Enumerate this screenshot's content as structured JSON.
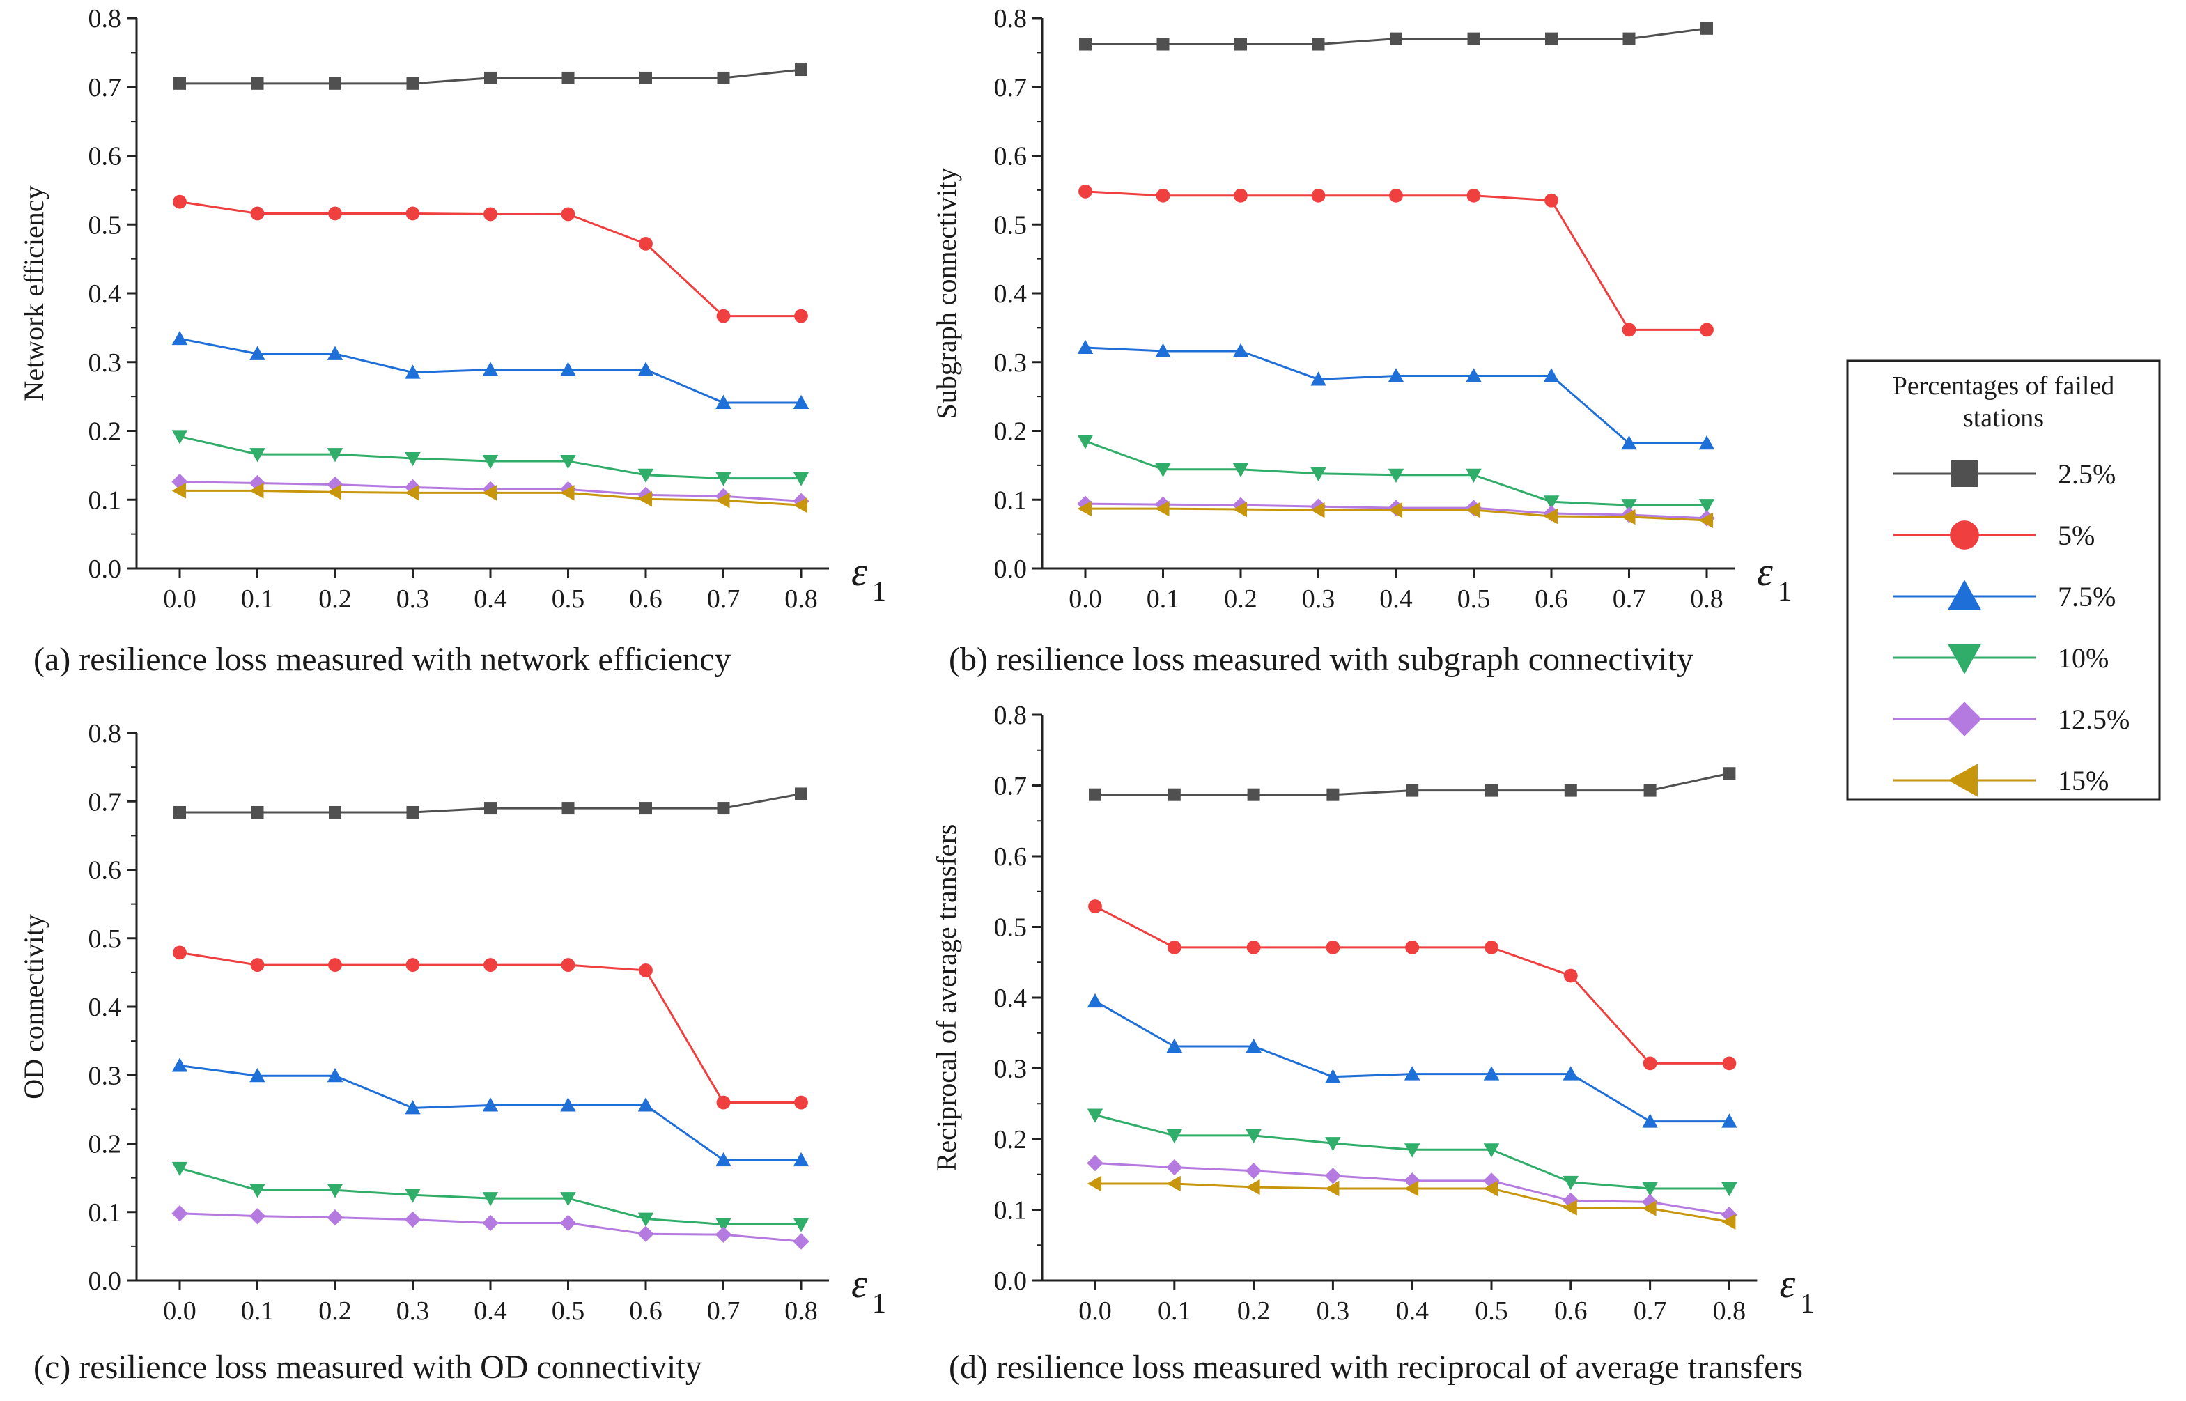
{
  "legend": {
    "title": "Percentages of failed stations",
    "title_lines": [
      "Percentages of failed",
      "stations"
    ],
    "entries": [
      {
        "label": "2.5%",
        "color": "#505050",
        "marker": "square"
      },
      {
        "label": "5%",
        "color": "#ef3f3f",
        "marker": "circle"
      },
      {
        "label": "7.5%",
        "color": "#1f6fd8",
        "marker": "triangle-up"
      },
      {
        "label": "10%",
        "color": "#2fad69",
        "marker": "triangle-down"
      },
      {
        "label": "12.5%",
        "color": "#b57ae0",
        "marker": "diamond"
      },
      {
        "label": "15%",
        "color": "#c8960c",
        "marker": "triangle-left"
      }
    ]
  },
  "chart_data": [
    {
      "type": "line",
      "caption": "(a) resilience loss measured with network efficiency",
      "xlabel": "ε",
      "xlabel_sub": "1",
      "ylabel": "Network efficiency",
      "x": [
        0.0,
        0.1,
        0.2,
        0.3,
        0.4,
        0.5,
        0.6,
        0.7,
        0.8
      ],
      "xticks": [
        "0.0",
        "0.1",
        "0.2",
        "0.3",
        "0.4",
        "0.5",
        "0.6",
        "0.7",
        "0.8"
      ],
      "yticks": [
        "0.0",
        "0.1",
        "0.2",
        "0.3",
        "0.4",
        "0.5",
        "0.6",
        "0.7",
        "0.8"
      ],
      "ylim": [
        0,
        0.8
      ],
      "series": [
        {
          "name": "2.5%",
          "values": [
            0.705,
            0.705,
            0.705,
            0.705,
            0.713,
            0.713,
            0.713,
            0.713,
            0.725
          ]
        },
        {
          "name": "5%",
          "values": [
            0.533,
            0.516,
            0.516,
            0.516,
            0.515,
            0.515,
            0.472,
            0.367,
            0.367
          ]
        },
        {
          "name": "7.5%",
          "values": [
            0.334,
            0.312,
            0.312,
            0.285,
            0.289,
            0.289,
            0.289,
            0.241,
            0.241
          ]
        },
        {
          "name": "10%",
          "values": [
            0.192,
            0.166,
            0.166,
            0.16,
            0.156,
            0.156,
            0.136,
            0.131,
            0.131
          ]
        },
        {
          "name": "12.5%",
          "values": [
            0.126,
            0.124,
            0.122,
            0.118,
            0.115,
            0.115,
            0.107,
            0.105,
            0.098
          ]
        },
        {
          "name": "15%",
          "values": [
            0.113,
            0.113,
            0.111,
            0.11,
            0.11,
            0.11,
            0.101,
            0.099,
            0.092
          ]
        }
      ]
    },
    {
      "type": "line",
      "caption": "(b) resilience loss measured with subgraph connectivity",
      "xlabel": "ε",
      "xlabel_sub": "1",
      "ylabel": "Subgraph connectivity",
      "x": [
        0.0,
        0.1,
        0.2,
        0.3,
        0.4,
        0.5,
        0.6,
        0.7,
        0.8
      ],
      "xticks": [
        "0.0",
        "0.1",
        "0.2",
        "0.3",
        "0.4",
        "0.5",
        "0.6",
        "0.7",
        "0.8"
      ],
      "yticks": [
        "0.0",
        "0.1",
        "0.2",
        "0.3",
        "0.4",
        "0.5",
        "0.6",
        "0.7",
        "0.8"
      ],
      "ylim": [
        0,
        0.8
      ],
      "series": [
        {
          "name": "2.5%",
          "values": [
            0.762,
            0.762,
            0.762,
            0.762,
            0.77,
            0.77,
            0.77,
            0.77,
            0.785
          ]
        },
        {
          "name": "5%",
          "values": [
            0.548,
            0.542,
            0.542,
            0.542,
            0.542,
            0.542,
            0.535,
            0.347,
            0.347
          ]
        },
        {
          "name": "7.5%",
          "values": [
            0.321,
            0.316,
            0.316,
            0.275,
            0.28,
            0.28,
            0.28,
            0.182,
            0.182
          ]
        },
        {
          "name": "10%",
          "values": [
            0.185,
            0.144,
            0.144,
            0.138,
            0.136,
            0.136,
            0.097,
            0.092,
            0.092
          ]
        },
        {
          "name": "12.5%",
          "values": [
            0.094,
            0.093,
            0.092,
            0.09,
            0.088,
            0.088,
            0.08,
            0.078,
            0.073
          ]
        },
        {
          "name": "15%",
          "values": [
            0.087,
            0.087,
            0.086,
            0.085,
            0.085,
            0.085,
            0.076,
            0.075,
            0.07
          ]
        }
      ]
    },
    {
      "type": "line",
      "caption": "(c) resilience loss measured with OD connectivity",
      "xlabel": "ε",
      "xlabel_sub": "1",
      "ylabel": "OD connectivity",
      "x": [
        0.0,
        0.1,
        0.2,
        0.3,
        0.4,
        0.5,
        0.6,
        0.7,
        0.8
      ],
      "xticks": [
        "0.0",
        "0.1",
        "0.2",
        "0.3",
        "0.4",
        "0.5",
        "0.6",
        "0.7",
        "0.8"
      ],
      "yticks": [
        "0.0",
        "0.1",
        "0.2",
        "0.3",
        "0.4",
        "0.5",
        "0.6",
        "0.7",
        "0.8"
      ],
      "ylim": [
        0,
        0.8
      ],
      "series": [
        {
          "name": "2.5%",
          "values": [
            0.684,
            0.684,
            0.684,
            0.684,
            0.69,
            0.69,
            0.69,
            0.69,
            0.711
          ]
        },
        {
          "name": "5%",
          "values": [
            0.479,
            0.461,
            0.461,
            0.461,
            0.461,
            0.461,
            0.453,
            0.26,
            0.26
          ]
        },
        {
          "name": "7.5%",
          "values": [
            0.314,
            0.299,
            0.299,
            0.252,
            0.256,
            0.256,
            0.256,
            0.176,
            0.176
          ]
        },
        {
          "name": "10%",
          "values": [
            0.164,
            0.132,
            0.132,
            0.125,
            0.12,
            0.12,
            0.09,
            0.082,
            0.082
          ]
        },
        {
          "name": "12.5%",
          "values": [
            0.098,
            0.094,
            0.092,
            0.089,
            0.084,
            0.084,
            0.068,
            0.067,
            0.057
          ]
        }
      ]
    },
    {
      "type": "line",
      "caption": "(d) resilience loss measured with reciprocal of average transfers",
      "xlabel": "ε",
      "xlabel_sub": "1",
      "ylabel": "Reciprocal of average transfers",
      "x": [
        0.0,
        0.1,
        0.2,
        0.3,
        0.4,
        0.5,
        0.6,
        0.7,
        0.8
      ],
      "xticks": [
        "0.0",
        "0.1",
        "0.2",
        "0.3",
        "0.4",
        "0.5",
        "0.6",
        "0.7",
        "0.8"
      ],
      "yticks": [
        "0.0",
        "0.1",
        "0.2",
        "0.3",
        "0.4",
        "0.5",
        "0.6",
        "0.7",
        "0.8"
      ],
      "ylim": [
        0,
        0.8
      ],
      "series": [
        {
          "name": "2.5%",
          "values": [
            0.687,
            0.687,
            0.687,
            0.687,
            0.693,
            0.693,
            0.693,
            0.693,
            0.717
          ]
        },
        {
          "name": "5%",
          "values": [
            0.529,
            0.471,
            0.471,
            0.471,
            0.471,
            0.471,
            0.431,
            0.307,
            0.307
          ]
        },
        {
          "name": "7.5%",
          "values": [
            0.395,
            0.331,
            0.331,
            0.288,
            0.292,
            0.292,
            0.292,
            0.225,
            0.225
          ]
        },
        {
          "name": "10%",
          "values": [
            0.234,
            0.205,
            0.205,
            0.194,
            0.185,
            0.185,
            0.139,
            0.13,
            0.13
          ]
        },
        {
          "name": "12.5%",
          "values": [
            0.166,
            0.16,
            0.155,
            0.148,
            0.141,
            0.141,
            0.113,
            0.111,
            0.093
          ]
        },
        {
          "name": "15%",
          "values": [
            0.137,
            0.137,
            0.132,
            0.13,
            0.13,
            0.13,
            0.103,
            0.102,
            0.083
          ]
        }
      ]
    }
  ]
}
